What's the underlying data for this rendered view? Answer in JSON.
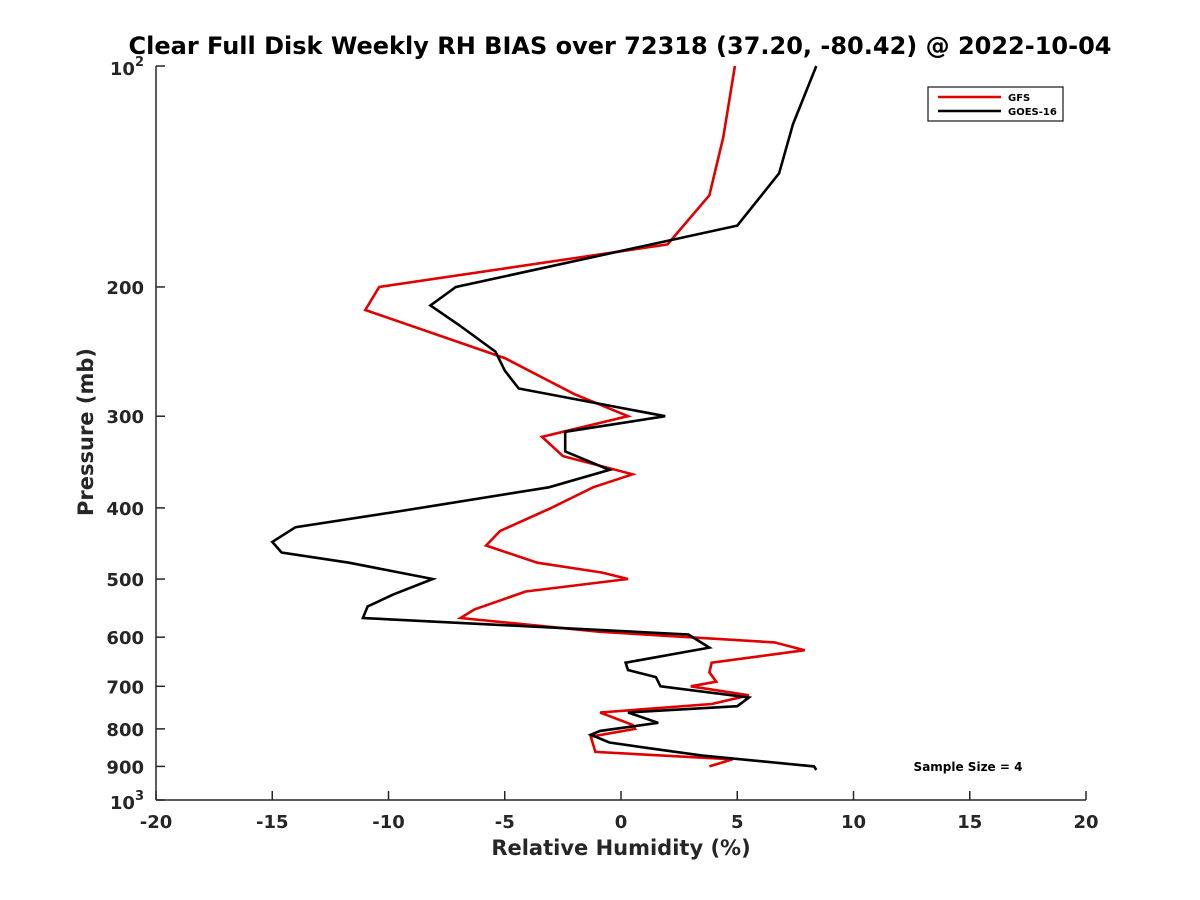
{
  "chart_data": {
    "type": "line",
    "title": "Clear Full Disk Weekly RH BIAS over 72318 (37.20, -80.42) @ 2022-10-04",
    "xlabel": "Relative Humidity (%)",
    "ylabel": "Pressure (mb)",
    "xlim": [
      -20,
      20
    ],
    "ylim": [
      100,
      1000
    ],
    "y_scale": "log",
    "y_reversed": true,
    "x_ticks": [
      {
        "value": -20,
        "label": "-20"
      },
      {
        "value": -15,
        "label": "-15"
      },
      {
        "value": -10,
        "label": "-10"
      },
      {
        "value": -5,
        "label": "-5"
      },
      {
        "value": 0,
        "label": "0"
      },
      {
        "value": 5,
        "label": "5"
      },
      {
        "value": 10,
        "label": "10"
      },
      {
        "value": 15,
        "label": "15"
      },
      {
        "value": 20,
        "label": "20"
      }
    ],
    "y_ticks": [
      {
        "value": 100,
        "base": "10",
        "exp": "2"
      },
      {
        "value": 200,
        "label": "200"
      },
      {
        "value": 300,
        "label": "300"
      },
      {
        "value": 400,
        "label": "400"
      },
      {
        "value": 500,
        "label": "500"
      },
      {
        "value": 600,
        "label": "600"
      },
      {
        "value": 700,
        "label": "700"
      },
      {
        "value": 800,
        "label": "800"
      },
      {
        "value": 900,
        "label": "900"
      },
      {
        "value": 1000,
        "base": "10",
        "exp": "3"
      }
    ],
    "grid": false,
    "legend_position": "top-right",
    "annotation": "Sample Size = 4",
    "series": [
      {
        "name": "GFS",
        "color": "#e00000",
        "points": [
          [
            4.9,
            100
          ],
          [
            4.4,
            125
          ],
          [
            3.8,
            150
          ],
          [
            2.0,
            175
          ],
          [
            -10.4,
            200
          ],
          [
            -11.0,
            215
          ],
          [
            -5.0,
            250
          ],
          [
            -2.0,
            280
          ],
          [
            0.3,
            300
          ],
          [
            -3.4,
            320
          ],
          [
            -2.5,
            340
          ],
          [
            0.5,
            360
          ],
          [
            -1.2,
            375
          ],
          [
            -3.0,
            400
          ],
          [
            -5.2,
            430
          ],
          [
            -5.8,
            450
          ],
          [
            -3.6,
            475
          ],
          [
            -0.8,
            490
          ],
          [
            0.3,
            500
          ],
          [
            -4.1,
            520
          ],
          [
            -6.3,
            550
          ],
          [
            -6.9,
            565
          ],
          [
            -0.9,
            590
          ],
          [
            6.6,
            610
          ],
          [
            7.9,
            625
          ],
          [
            3.9,
            650
          ],
          [
            3.8,
            670
          ],
          [
            4.1,
            690
          ],
          [
            3.0,
            700
          ],
          [
            5.5,
            720
          ],
          [
            3.9,
            740
          ],
          [
            -0.9,
            760
          ],
          [
            0.5,
            790
          ],
          [
            0.6,
            800
          ],
          [
            -1.3,
            820
          ],
          [
            -1.2,
            840
          ],
          [
            -1.1,
            860
          ],
          [
            4.8,
            880
          ],
          [
            3.8,
            900
          ]
        ]
      },
      {
        "name": "GOES-16",
        "color": "#000000",
        "points": [
          [
            8.4,
            100
          ],
          [
            7.4,
            120
          ],
          [
            6.8,
            140
          ],
          [
            5.0,
            165
          ],
          [
            -7.1,
            200
          ],
          [
            -8.2,
            212
          ],
          [
            -7.0,
            225
          ],
          [
            -5.4,
            245
          ],
          [
            -5.0,
            260
          ],
          [
            -4.4,
            275
          ],
          [
            1.9,
            300
          ],
          [
            -2.4,
            315
          ],
          [
            -2.4,
            335
          ],
          [
            -0.5,
            355
          ],
          [
            -3.1,
            375
          ],
          [
            -9.7,
            405
          ],
          [
            -14.0,
            425
          ],
          [
            -15.0,
            445
          ],
          [
            -14.6,
            460
          ],
          [
            -11.7,
            475
          ],
          [
            -8.1,
            500
          ],
          [
            -9.8,
            525
          ],
          [
            -10.9,
            545
          ],
          [
            -11.1,
            565
          ],
          [
            2.9,
            595
          ],
          [
            3.8,
            620
          ],
          [
            0.2,
            650
          ],
          [
            0.3,
            665
          ],
          [
            1.5,
            680
          ],
          [
            1.7,
            700
          ],
          [
            5.5,
            725
          ],
          [
            5.0,
            745
          ],
          [
            0.3,
            760
          ],
          [
            1.6,
            785
          ],
          [
            -0.9,
            805
          ],
          [
            -1.3,
            815
          ],
          [
            -0.5,
            835
          ],
          [
            1.2,
            850
          ],
          [
            3.5,
            870
          ],
          [
            8.3,
            900
          ],
          [
            8.4,
            910
          ]
        ]
      }
    ]
  }
}
